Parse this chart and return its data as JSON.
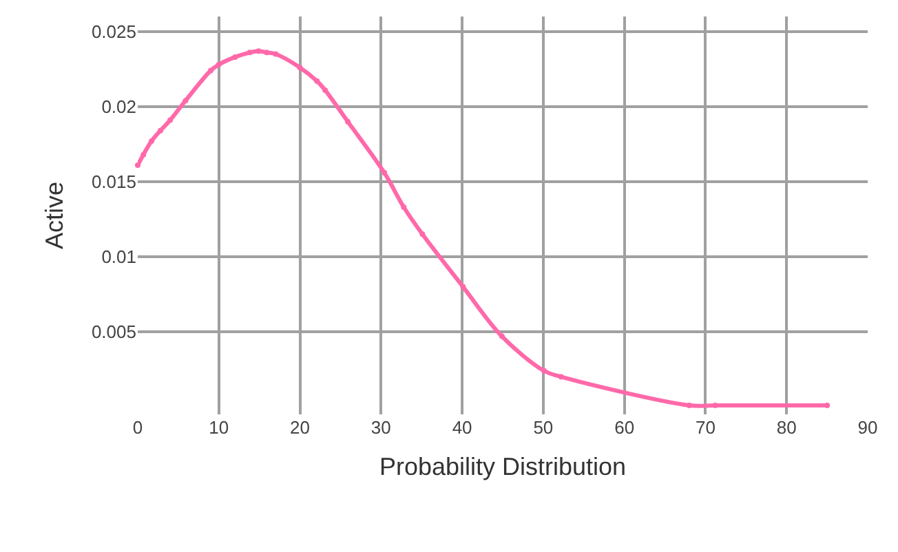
{
  "chart_data": {
    "type": "line",
    "xlabel": "Probability Distribution",
    "ylabel": "Active",
    "x": [
      0,
      0.7,
      1.7,
      2.8,
      4,
      5.9,
      9,
      10,
      12,
      13.8,
      14.9,
      15.9,
      17,
      20,
      22.1,
      23.1,
      25.9,
      30.4,
      32.8,
      35.1,
      40.1,
      44.9,
      50.1,
      52.2,
      68,
      71.2,
      85
    ],
    "series": [
      {
        "color": "#ff69aa",
        "values": [
          0.0161,
          0.0168,
          0.0177,
          0.0184,
          0.0191,
          0.0204,
          0.0224,
          0.0228,
          0.0233,
          0.0236,
          0.0237,
          0.0236,
          0.0235,
          0.0226,
          0.0217,
          0.0211,
          0.019,
          0.0156,
          0.0133,
          0.0115,
          0.008,
          0.0047,
          0.0024,
          0.002,
          0.0001,
          0.0001,
          0.0001
        ]
      }
    ],
    "xlim": [
      0,
      90
    ],
    "xticks": [
      0,
      10,
      20,
      30,
      40,
      50,
      60,
      70,
      80,
      90
    ],
    "ylim": [
      -0.0005,
      0.026
    ],
    "yticks": [
      0.005,
      0.01,
      0.015,
      0.02,
      0.025
    ],
    "grid": true,
    "marker": "circle",
    "line_style": "solid"
  }
}
